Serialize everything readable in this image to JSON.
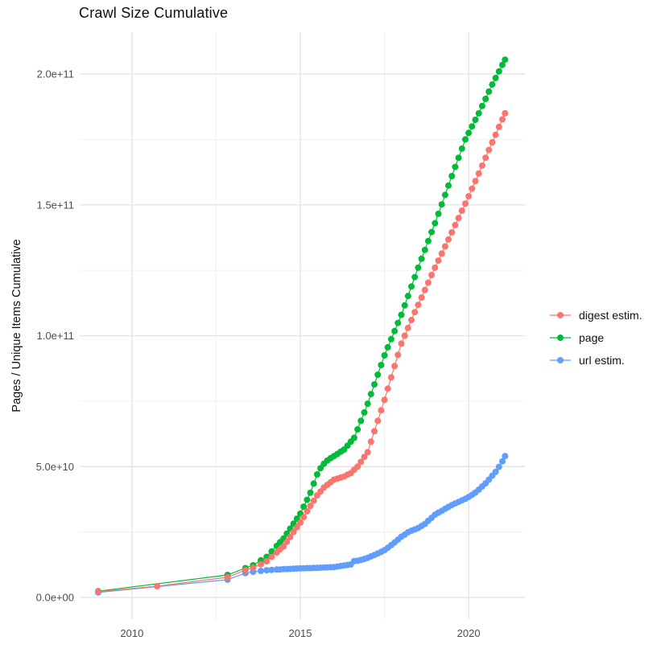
{
  "chart": {
    "title": "Crawl Size Cumulative",
    "y_axis_title": "Pages / Unique Items Cumulative"
  },
  "chart_data": {
    "type": "scatter",
    "title": "Crawl Size Cumulative",
    "xlabel": "",
    "ylabel": "Pages / Unique Items Cumulative",
    "value_unit": "billions (1e9); y tick labels shown in scientific notation",
    "grid": true,
    "legend_position": "right",
    "x_domain": [
      2008.45,
      2021.67
    ],
    "y_domain_e9": [
      -8.3,
      216
    ],
    "x_ticks": {
      "major": [
        2010,
        2015,
        2020
      ],
      "minor": [
        2012.5,
        2017.5
      ],
      "labels": [
        "2010",
        "2015",
        "2020"
      ]
    },
    "y_ticks": {
      "major_e9": [
        0,
        50,
        100,
        150,
        200
      ],
      "minor_e9": [
        25,
        75,
        125,
        175
      ],
      "labels": [
        "0.0e+00",
        "5.0e+10",
        "1.0e+11",
        "1.5e+11",
        "2.0e+11"
      ]
    },
    "draw_order": [
      1,
      2,
      0
    ],
    "series": [
      {
        "name": "digest estim.",
        "color": "#F8766D",
        "points": [
          [
            2009.0,
            2.2
          ],
          [
            2010.75,
            4.3
          ],
          [
            2012.84,
            7.7
          ],
          [
            2013.37,
            10.4
          ],
          [
            2013.6,
            11.3
          ],
          [
            2013.83,
            12.7
          ],
          [
            2014.0,
            13.8
          ],
          [
            2014.15,
            15.5
          ],
          [
            2014.3,
            17.2
          ],
          [
            2014.4,
            18.4
          ],
          [
            2014.5,
            19.5
          ],
          [
            2014.6,
            21.3
          ],
          [
            2014.7,
            23.1
          ],
          [
            2014.8,
            25
          ],
          [
            2014.9,
            26.8
          ],
          [
            2015.0,
            28.6
          ],
          [
            2015.1,
            30.7
          ],
          [
            2015.2,
            32.9
          ],
          [
            2015.3,
            35
          ],
          [
            2015.4,
            37
          ],
          [
            2015.5,
            39
          ],
          [
            2015.6,
            40.5
          ],
          [
            2015.7,
            42
          ],
          [
            2015.8,
            43
          ],
          [
            2015.9,
            44
          ],
          [
            2016.0,
            45
          ],
          [
            2016.1,
            45.4
          ],
          [
            2016.2,
            45.8
          ],
          [
            2016.3,
            46.2
          ],
          [
            2016.4,
            46.9
          ],
          [
            2016.5,
            47.5
          ],
          [
            2016.6,
            48.8
          ],
          [
            2016.7,
            50
          ],
          [
            2016.8,
            51.8
          ],
          [
            2016.9,
            53.7
          ],
          [
            2017.0,
            55.5
          ],
          [
            2017.1,
            59.5
          ],
          [
            2017.2,
            63.5
          ],
          [
            2017.3,
            67.5
          ],
          [
            2017.4,
            71.5
          ],
          [
            2017.5,
            75.5
          ],
          [
            2017.6,
            79.8
          ],
          [
            2017.7,
            84.1
          ],
          [
            2017.8,
            88.4
          ],
          [
            2017.9,
            92.7
          ],
          [
            2018.0,
            97
          ],
          [
            2018.1,
            100
          ],
          [
            2018.2,
            103
          ],
          [
            2018.3,
            106
          ],
          [
            2018.4,
            109
          ],
          [
            2018.5,
            111.8
          ],
          [
            2018.6,
            114.6
          ],
          [
            2018.7,
            117.5
          ],
          [
            2018.8,
            120.3
          ],
          [
            2018.9,
            123.2
          ],
          [
            2019.0,
            126
          ],
          [
            2019.1,
            128.7
          ],
          [
            2019.2,
            131.4
          ],
          [
            2019.3,
            134.1
          ],
          [
            2019.4,
            136.8
          ],
          [
            2019.5,
            139.5
          ],
          [
            2019.6,
            142.3
          ],
          [
            2019.7,
            145
          ],
          [
            2019.8,
            147.8
          ],
          [
            2019.9,
            150.5
          ],
          [
            2020.0,
            153.3
          ],
          [
            2020.1,
            156.2
          ],
          [
            2020.2,
            159.1
          ],
          [
            2020.3,
            162
          ],
          [
            2020.4,
            165
          ],
          [
            2020.5,
            168
          ],
          [
            2020.6,
            171
          ],
          [
            2020.7,
            173.9
          ],
          [
            2020.8,
            176.8
          ],
          [
            2020.9,
            179.8
          ],
          [
            2021.0,
            182.7
          ],
          [
            2021.08,
            185
          ]
        ]
      },
      {
        "name": "page",
        "color": "#00BA38",
        "points": [
          [
            2009.0,
            2.4
          ],
          [
            2012.84,
            8.6
          ],
          [
            2013.37,
            11.2
          ],
          [
            2013.6,
            12.3
          ],
          [
            2013.83,
            14.2
          ],
          [
            2014.0,
            15.5
          ],
          [
            2014.15,
            17.6
          ],
          [
            2014.3,
            19.7
          ],
          [
            2014.4,
            21.1
          ],
          [
            2014.5,
            22.5
          ],
          [
            2014.6,
            24.4
          ],
          [
            2014.7,
            26.3
          ],
          [
            2014.8,
            28.2
          ],
          [
            2014.9,
            30.1
          ],
          [
            2015.0,
            32
          ],
          [
            2015.1,
            34.7
          ],
          [
            2015.2,
            37.3
          ],
          [
            2015.3,
            40
          ],
          [
            2015.4,
            43.5
          ],
          [
            2015.5,
            47
          ],
          [
            2015.6,
            49.4
          ],
          [
            2015.7,
            51.1
          ],
          [
            2015.8,
            52.3
          ],
          [
            2015.9,
            53.2
          ],
          [
            2016.0,
            54
          ],
          [
            2016.1,
            54.8
          ],
          [
            2016.2,
            55.7
          ],
          [
            2016.3,
            56.5
          ],
          [
            2016.4,
            58
          ],
          [
            2016.5,
            59.5
          ],
          [
            2016.6,
            61
          ],
          [
            2016.7,
            64.2
          ],
          [
            2016.8,
            67.5
          ],
          [
            2016.9,
            70.7
          ],
          [
            2017.0,
            74
          ],
          [
            2017.1,
            77.7
          ],
          [
            2017.2,
            81.4
          ],
          [
            2017.3,
            85.1
          ],
          [
            2017.4,
            88.8
          ],
          [
            2017.5,
            92.5
          ],
          [
            2017.6,
            95.6
          ],
          [
            2017.7,
            98.7
          ],
          [
            2017.8,
            101.8
          ],
          [
            2017.9,
            104.9
          ],
          [
            2018.0,
            108
          ],
          [
            2018.1,
            111.6
          ],
          [
            2018.2,
            115.2
          ],
          [
            2018.3,
            118.8
          ],
          [
            2018.4,
            122.4
          ],
          [
            2018.5,
            126
          ],
          [
            2018.6,
            129.4
          ],
          [
            2018.7,
            132.8
          ],
          [
            2018.8,
            136.2
          ],
          [
            2018.9,
            139.6
          ],
          [
            2019.0,
            143
          ],
          [
            2019.1,
            146.6
          ],
          [
            2019.2,
            150.2
          ],
          [
            2019.3,
            153.8
          ],
          [
            2019.4,
            157.4
          ],
          [
            2019.5,
            161
          ],
          [
            2019.6,
            164.5
          ],
          [
            2019.7,
            168
          ],
          [
            2019.8,
            171.5
          ],
          [
            2019.9,
            175
          ],
          [
            2020.0,
            177.5
          ],
          [
            2020.1,
            180
          ],
          [
            2020.2,
            182.5
          ],
          [
            2020.3,
            185
          ],
          [
            2020.4,
            187.8
          ],
          [
            2020.5,
            190.5
          ],
          [
            2020.6,
            193.3
          ],
          [
            2020.7,
            196
          ],
          [
            2020.8,
            198.5
          ],
          [
            2020.9,
            201
          ],
          [
            2021.0,
            203.5
          ],
          [
            2021.08,
            205.5
          ]
        ]
      },
      {
        "name": "url estim.",
        "color": "#619CFF",
        "points": [
          [
            2009.0,
            1.9
          ],
          [
            2012.84,
            6.8
          ],
          [
            2013.37,
            9.3
          ],
          [
            2013.6,
            9.8
          ],
          [
            2013.83,
            10.15
          ],
          [
            2014.0,
            10.4
          ],
          [
            2014.15,
            10.5
          ],
          [
            2014.3,
            10.65
          ],
          [
            2014.4,
            10.7
          ],
          [
            2014.5,
            10.8
          ],
          [
            2014.6,
            10.85
          ],
          [
            2014.7,
            10.9
          ],
          [
            2014.8,
            11
          ],
          [
            2014.9,
            11.05
          ],
          [
            2015.0,
            11.1
          ],
          [
            2015.1,
            11.15
          ],
          [
            2015.2,
            11.2
          ],
          [
            2015.3,
            11.22
          ],
          [
            2015.4,
            11.26
          ],
          [
            2015.5,
            11.3
          ],
          [
            2015.6,
            11.36
          ],
          [
            2015.7,
            11.42
          ],
          [
            2015.8,
            11.48
          ],
          [
            2015.9,
            11.54
          ],
          [
            2016.0,
            11.6
          ],
          [
            2016.1,
            11.8
          ],
          [
            2016.2,
            12
          ],
          [
            2016.3,
            12.2
          ],
          [
            2016.4,
            12.4
          ],
          [
            2016.5,
            12.6
          ],
          [
            2016.6,
            13.9
          ],
          [
            2016.7,
            14
          ],
          [
            2016.8,
            14.3
          ],
          [
            2016.9,
            14.7
          ],
          [
            2017.0,
            15.1
          ],
          [
            2017.1,
            15.7
          ],
          [
            2017.2,
            16.2
          ],
          [
            2017.3,
            16.8
          ],
          [
            2017.4,
            17.4
          ],
          [
            2017.5,
            18.1
          ],
          [
            2017.6,
            19
          ],
          [
            2017.7,
            20
          ],
          [
            2017.8,
            21
          ],
          [
            2017.9,
            22.1
          ],
          [
            2018.0,
            23.2
          ],
          [
            2018.1,
            24
          ],
          [
            2018.2,
            24.9
          ],
          [
            2018.3,
            25.5
          ],
          [
            2018.4,
            26
          ],
          [
            2018.5,
            26.5
          ],
          [
            2018.6,
            27.3
          ],
          [
            2018.7,
            28.1
          ],
          [
            2018.8,
            29.3
          ],
          [
            2018.9,
            30.4
          ],
          [
            2019.0,
            31.6
          ],
          [
            2019.1,
            32.4
          ],
          [
            2019.2,
            33.1
          ],
          [
            2019.3,
            33.9
          ],
          [
            2019.4,
            34.6
          ],
          [
            2019.5,
            35.3
          ],
          [
            2019.6,
            35.9
          ],
          [
            2019.7,
            36.5
          ],
          [
            2019.8,
            37.1
          ],
          [
            2019.9,
            37.7
          ],
          [
            2020.0,
            38.4
          ],
          [
            2020.1,
            39.2
          ],
          [
            2020.2,
            40.1
          ],
          [
            2020.3,
            41.2
          ],
          [
            2020.4,
            42.4
          ],
          [
            2020.5,
            43.6
          ],
          [
            2020.6,
            45
          ],
          [
            2020.7,
            46.5
          ],
          [
            2020.8,
            48
          ],
          [
            2020.9,
            49.9
          ],
          [
            2021.0,
            52
          ],
          [
            2021.08,
            54
          ]
        ]
      }
    ]
  }
}
